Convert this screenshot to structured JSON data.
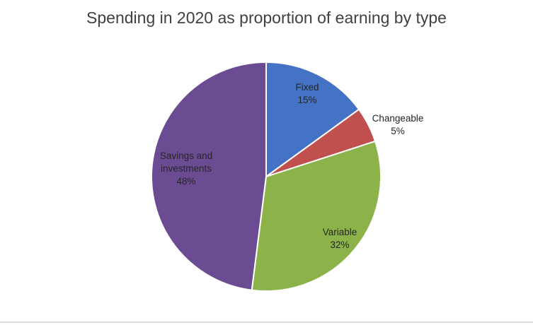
{
  "chart_data": {
    "type": "pie",
    "title": "Spending in 2020 as proportion of earning by type",
    "slices": [
      {
        "label": "Fixed",
        "value": 15,
        "value_label": "15%",
        "color": "#4472C4"
      },
      {
        "label": "Changeable",
        "value": 5,
        "value_label": "5%",
        "color": "#C0504D"
      },
      {
        "label": "Variable",
        "value": 32,
        "value_label": "32%",
        "color": "#8CB24A"
      },
      {
        "label": "Savings and investments",
        "value": 48,
        "value_label": "48%",
        "color": "#6B4C92"
      }
    ],
    "start_angle_deg": 0,
    "direction": "clockwise",
    "legend": "none"
  }
}
